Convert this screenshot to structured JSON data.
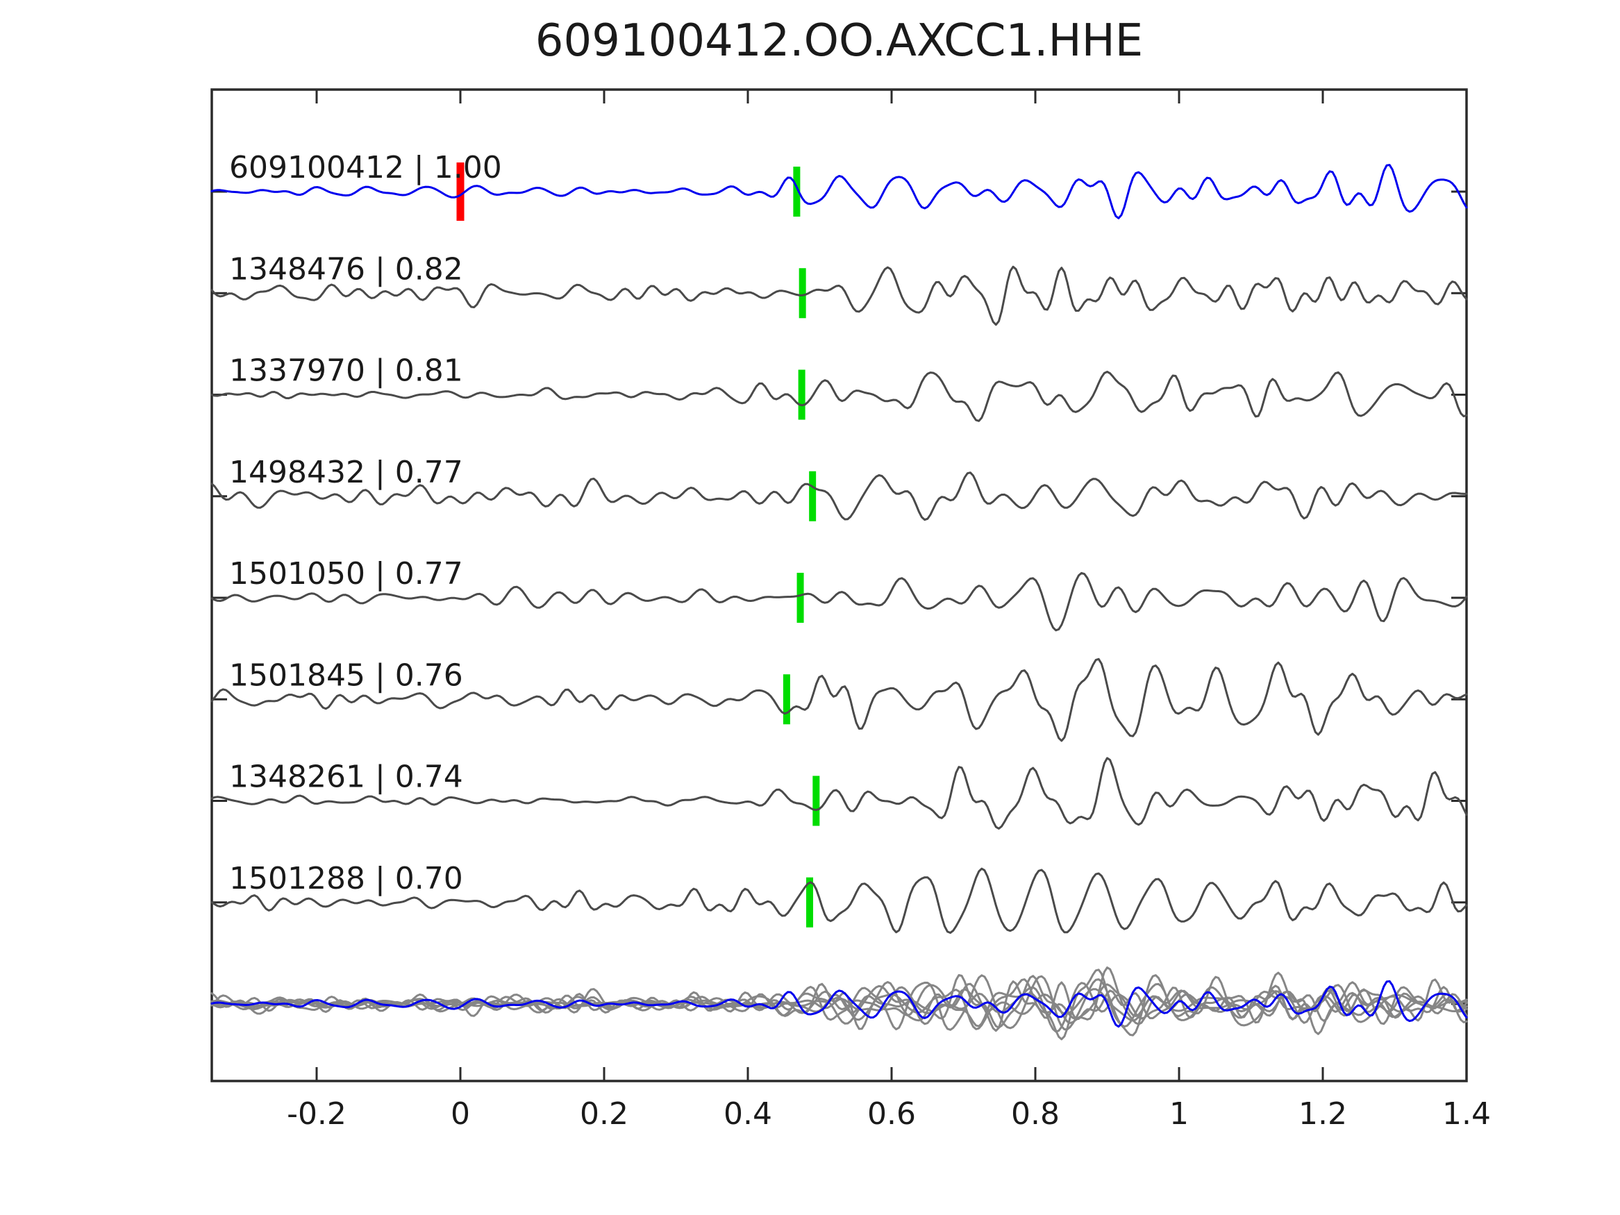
{
  "title": "609100412.OO.AXCC1.HHE",
  "colors": {
    "background": "#ffffff",
    "axis": "#2b2b2b",
    "text": "#1a1a1a",
    "template_trace": "#0000ee",
    "detection_trace": "#4a4a4a",
    "overlay_trace": "#868686",
    "pick_marker_green": "#00dd00",
    "origin_marker_red": "#ff0000"
  },
  "chart_data": {
    "type": "line",
    "title": "609100412.OO.AXCC1.HHE",
    "xlabel": "",
    "ylabel": "",
    "x_range": [
      -0.346,
      1.4
    ],
    "grid": false,
    "legend": false,
    "x_ticks": [
      {
        "value": -0.2,
        "label": "-0.2"
      },
      {
        "value": 0,
        "label": "0"
      },
      {
        "value": 0.2,
        "label": "0.2"
      },
      {
        "value": 0.4,
        "label": "0.4"
      },
      {
        "value": 0.6,
        "label": "0.6"
      },
      {
        "value": 0.8,
        "label": "0.8"
      },
      {
        "value": 1,
        "label": "1"
      },
      {
        "value": 1.2,
        "label": "1.2"
      },
      {
        "value": 1.4,
        "label": "1.4"
      }
    ],
    "rows_note": "8 normalized waveform rows (template first in blue, 7 gray detections) plus bottom overlay row of all traces; green bars are phase picks, red bar is template zero time",
    "traces": [
      {
        "id": "609100412",
        "correlation": "1.00",
        "label": "609100412 | 1.00",
        "role": "template",
        "picks": [
          {
            "time": 0.0,
            "marker": "red"
          },
          {
            "time": 0.468,
            "marker": "green"
          }
        ],
        "synth": {
          "seed": 9,
          "amp": 78,
          "env": [
            [
              -0.35,
              0.1
            ],
            [
              0.42,
              0.12
            ],
            [
              0.5,
              0.4
            ],
            [
              0.58,
              0.7
            ],
            [
              0.7,
              1.0
            ],
            [
              0.88,
              1.0
            ],
            [
              1.02,
              0.62
            ],
            [
              1.41,
              0.55
            ]
          ]
        }
      },
      {
        "id": "1348476",
        "correlation": "0.82",
        "label": "1348476 | 0.82",
        "role": "detection",
        "picks": [
          {
            "time": 0.476,
            "marker": "green"
          }
        ],
        "synth": {
          "seed": 21,
          "amp": 62,
          "env": [
            [
              -0.35,
              0.3
            ],
            [
              0.4,
              0.3
            ],
            [
              0.52,
              0.6
            ],
            [
              0.68,
              0.95
            ],
            [
              0.85,
              1.0
            ],
            [
              1.02,
              0.62
            ],
            [
              1.41,
              0.58
            ]
          ]
        }
      },
      {
        "id": "1337970",
        "correlation": "0.81",
        "label": "1337970 | 0.81",
        "role": "detection",
        "picks": [
          {
            "time": 0.475,
            "marker": "green"
          }
        ],
        "synth": {
          "seed": 33,
          "amp": 66,
          "env": [
            [
              -0.35,
              0.1
            ],
            [
              0.3,
              0.12
            ],
            [
              0.45,
              0.45
            ],
            [
              0.6,
              0.7
            ],
            [
              0.78,
              1.0
            ],
            [
              0.9,
              1.0
            ],
            [
              1.05,
              0.6
            ],
            [
              1.41,
              0.55
            ]
          ]
        }
      },
      {
        "id": "1498432",
        "correlation": "0.77",
        "label": "1498432 | 0.77",
        "role": "detection",
        "picks": [
          {
            "time": 0.49,
            "marker": "green"
          }
        ],
        "synth": {
          "seed": 47,
          "amp": 58,
          "env": [
            [
              -0.35,
              0.38
            ],
            [
              0.4,
              0.4
            ],
            [
              0.55,
              0.7
            ],
            [
              0.72,
              1.0
            ],
            [
              0.9,
              0.95
            ],
            [
              1.05,
              0.65
            ],
            [
              1.41,
              0.6
            ]
          ]
        }
      },
      {
        "id": "1501050",
        "correlation": "0.77",
        "label": "1501050 | 0.77",
        "role": "detection",
        "picks": [
          {
            "time": 0.473,
            "marker": "green"
          }
        ],
        "synth": {
          "seed": 58,
          "amp": 62,
          "env": [
            [
              -0.35,
              0.22
            ],
            [
              0.4,
              0.26
            ],
            [
              0.52,
              0.6
            ],
            [
              0.7,
              1.0
            ],
            [
              0.88,
              0.95
            ],
            [
              1.05,
              0.6
            ],
            [
              1.41,
              0.55
            ]
          ]
        }
      },
      {
        "id": "1501845",
        "correlation": "0.76",
        "label": "1501845 | 0.76",
        "role": "detection",
        "picks": [
          {
            "time": 0.454,
            "marker": "green"
          }
        ],
        "synth": {
          "seed": 66,
          "amp": 72,
          "env": [
            [
              -0.35,
              0.2
            ],
            [
              0.4,
              0.22
            ],
            [
              0.52,
              0.55
            ],
            [
              0.7,
              1.0
            ],
            [
              0.92,
              1.0
            ],
            [
              1.12,
              0.85
            ],
            [
              1.41,
              0.5
            ]
          ]
        }
      },
      {
        "id": "1348261",
        "correlation": "0.74",
        "label": "1348261 | 0.74",
        "role": "detection",
        "picks": [
          {
            "time": 0.495,
            "marker": "green"
          }
        ],
        "synth": {
          "seed": 74,
          "amp": 66,
          "env": [
            [
              -0.35,
              0.12
            ],
            [
              0.38,
              0.14
            ],
            [
              0.52,
              0.55
            ],
            [
              0.7,
              1.0
            ],
            [
              0.9,
              1.0
            ],
            [
              1.05,
              0.6
            ],
            [
              1.41,
              0.55
            ]
          ]
        }
      },
      {
        "id": "1501288",
        "correlation": "0.70",
        "label": "1501288 | 0.70",
        "role": "detection",
        "picks": [
          {
            "time": 0.486,
            "marker": "green"
          }
        ],
        "synth": {
          "seed": 83,
          "amp": 58,
          "env": [
            [
              -0.35,
              0.3
            ],
            [
              0.4,
              0.32
            ],
            [
              0.52,
              0.6
            ],
            [
              0.7,
              1.0
            ],
            [
              0.88,
              0.95
            ],
            [
              1.05,
              0.62
            ],
            [
              1.41,
              0.55
            ]
          ]
        }
      }
    ],
    "overlay_row": {
      "description": "all traces superimposed, gray detections with blue template on top",
      "amp_scale": 0.85
    }
  }
}
